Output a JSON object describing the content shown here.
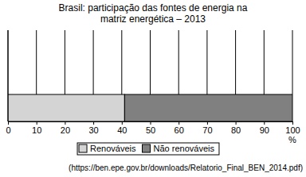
{
  "chart_data": {
    "type": "bar",
    "title": "Brasil: participação das fontes de energia na matriz energética – 2013",
    "orientation": "horizontal",
    "stacked": true,
    "categories": [
      null
    ],
    "series": [
      {
        "name": "Renováveis",
        "color": "#d4d4d4",
        "values": [
          41
        ]
      },
      {
        "name": "Não renováveis",
        "color": "#808080",
        "values": [
          59
        ]
      }
    ],
    "xlim": [
      0,
      100
    ],
    "xticks": [
      0,
      10,
      20,
      30,
      40,
      50,
      60,
      70,
      80,
      90,
      100
    ],
    "xlabel": "%",
    "grid": true,
    "legend": "bottom",
    "annotations": [
      "(https://ben.epe.gov.br/downloads/Relatorio_Final_BEN_2014.pdf)"
    ]
  }
}
